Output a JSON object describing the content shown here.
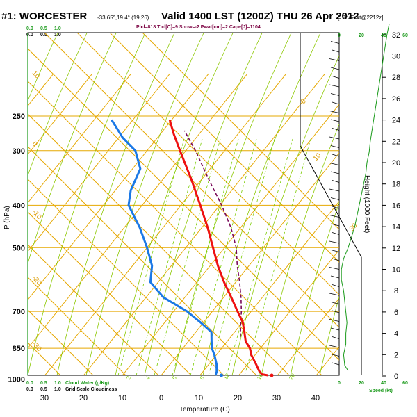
{
  "chart_data": {
    "type": "line",
    "title": "#1: WORCESTER",
    "station_coords": "-33.65°,19.4° (19,26)",
    "valid": "Valid 1400 LST (1200Z) THU 26 Apr 2012",
    "forecast": "[18hrFcst@2212z]",
    "info_line": "Plcl=818 Tlcl[C]=9 Show=-2 Pwat[cm]=2 Cape[J]=1104",
    "top_green": [
      "0.0",
      "0.5",
      "1.0"
    ],
    "top_black": [
      "0.0",
      "0.5",
      "1.0"
    ],
    "bottom_green": [
      "0.0",
      "0.5",
      "1.0"
    ],
    "bottom_black": [
      "0.0",
      "0.5",
      "1.0"
    ],
    "cloud_water_label": "Cloud Water (g/Kg)",
    "grid_scale_label": "Grid Scale Cloudiness",
    "ylabel": "P (hPa)",
    "xlabel": "Temperature (C)",
    "height_label": "Height (1000 Feet)",
    "speed_label": "Speed (kt)",
    "pressure_ticks": [
      "250",
      "300",
      "400",
      "500",
      "700",
      "850",
      "1000"
    ],
    "temperature_ticks": [
      "30",
      "20",
      "10",
      "0",
      "10",
      "20",
      "30",
      "40"
    ],
    "height_ticks": [
      "0",
      "2",
      "4",
      "6",
      "8",
      "10",
      "12",
      "14",
      "16",
      "18",
      "20",
      "22",
      "24",
      "26",
      "28",
      "30",
      "32"
    ],
    "speed_ticks": [
      "0",
      "20",
      "40",
      "60"
    ],
    "dry_adiabat_labels": [
      "0",
      "10",
      "30"
    ],
    "left_adiabat_labels": [
      "10",
      "0",
      "-10",
      "-20",
      "-30"
    ],
    "mixing_ratio_labels": [
      "2",
      "4",
      "6",
      "8",
      "12",
      "16",
      "20"
    ],
    "colors": {
      "temperature": "#ee1111",
      "dewpoint": "#1a78e6",
      "parcel": "#7a0a5a",
      "isotherm": "#e6a800",
      "adiabat": "#8cc800",
      "mixing": "#7acc00",
      "axis_green": "#1a9a1a"
    },
    "temperature_profile": [
      {
        "p": 980,
        "t": 27.5
      },
      {
        "p": 975,
        "t": 25.8
      },
      {
        "p": 960,
        "t": 24.5
      },
      {
        "p": 925,
        "t": 22.2
      },
      {
        "p": 880,
        "t": 19.0
      },
      {
        "p": 850,
        "t": 17.3
      },
      {
        "p": 820,
        "t": 14.8
      },
      {
        "p": 780,
        "t": 12.5
      },
      {
        "p": 740,
        "t": 10.0
      },
      {
        "p": 700,
        "t": 6.5
      },
      {
        "p": 650,
        "t": 2.0
      },
      {
        "p": 600,
        "t": -3.0
      },
      {
        "p": 550,
        "t": -8.0
      },
      {
        "p": 500,
        "t": -13.0
      },
      {
        "p": 450,
        "t": -18.5
      },
      {
        "p": 400,
        "t": -25.0
      },
      {
        "p": 350,
        "t": -32.5
      },
      {
        "p": 300,
        "t": -41.5
      },
      {
        "p": 275,
        "t": -46.5
      },
      {
        "p": 260,
        "t": -49.5
      },
      {
        "p": 255,
        "t": -50.5
      }
    ],
    "dewpoint_profile": [
      {
        "p": 980,
        "t": 14.0
      },
      {
        "p": 960,
        "t": 13.5
      },
      {
        "p": 925,
        "t": 12.0
      },
      {
        "p": 880,
        "t": 9.5
      },
      {
        "p": 850,
        "t": 7.5
      },
      {
        "p": 820,
        "t": 6.0
      },
      {
        "p": 780,
        "t": 4.0
      },
      {
        "p": 740,
        "t": -1.0
      },
      {
        "p": 700,
        "t": -6.5
      },
      {
        "p": 650,
        "t": -15.5
      },
      {
        "p": 600,
        "t": -22.0
      },
      {
        "p": 550,
        "t": -25.0
      },
      {
        "p": 500,
        "t": -30.0
      },
      {
        "p": 450,
        "t": -36.0
      },
      {
        "p": 400,
        "t": -43.5
      },
      {
        "p": 370,
        "t": -46.0
      },
      {
        "p": 330,
        "t": -48.0
      },
      {
        "p": 300,
        "t": -53.0
      },
      {
        "p": 280,
        "t": -59.0
      },
      {
        "p": 255,
        "t": -65.5
      }
    ],
    "parcel_profile": [
      {
        "p": 800,
        "t": 12.5
      },
      {
        "p": 750,
        "t": 10.0
      },
      {
        "p": 700,
        "t": 7.5
      },
      {
        "p": 650,
        "t": 4.5
      },
      {
        "p": 600,
        "t": 1.0
      },
      {
        "p": 550,
        "t": -3.0
      },
      {
        "p": 500,
        "t": -7.0
      },
      {
        "p": 450,
        "t": -12.5
      },
      {
        "p": 400,
        "t": -19.5
      },
      {
        "p": 350,
        "t": -28.0
      },
      {
        "p": 300,
        "t": -37.5
      },
      {
        "p": 270,
        "t": -44.5
      }
    ],
    "surface_temp_marker": {
      "p": 980,
      "t": 28.5
    },
    "surface_dew_marker": {
      "p": 980,
      "t": 15.5
    },
    "height_wind_speed": [
      {
        "h": 0.5,
        "s": 8
      },
      {
        "h": 1,
        "s": 5
      },
      {
        "h": 2,
        "s": 4
      },
      {
        "h": 3,
        "s": 6
      },
      {
        "h": 4,
        "s": 6
      },
      {
        "h": 5,
        "s": 7
      },
      {
        "h": 6,
        "s": 6
      },
      {
        "h": 7,
        "s": 5
      },
      {
        "h": 8,
        "s": 4
      },
      {
        "h": 9,
        "s": 2
      },
      {
        "h": 10,
        "s": 2
      },
      {
        "h": 11,
        "s": 4
      },
      {
        "h": 12,
        "s": 8
      },
      {
        "h": 13,
        "s": 11
      },
      {
        "h": 14,
        "s": 14
      },
      {
        "h": 15,
        "s": 16
      },
      {
        "h": 16,
        "s": 18
      },
      {
        "h": 17,
        "s": 20
      },
      {
        "h": 18,
        "s": 22
      },
      {
        "h": 19,
        "s": 24
      },
      {
        "h": 20,
        "s": 25
      },
      {
        "h": 21,
        "s": 27
      },
      {
        "h": 22,
        "s": 28
      },
      {
        "h": 24,
        "s": 31
      },
      {
        "h": 26,
        "s": 34
      },
      {
        "h": 28,
        "s": 37
      },
      {
        "h": 30,
        "s": 40
      },
      {
        "h": 32,
        "s": 43
      },
      {
        "h": 33,
        "s": 45
      }
    ]
  }
}
